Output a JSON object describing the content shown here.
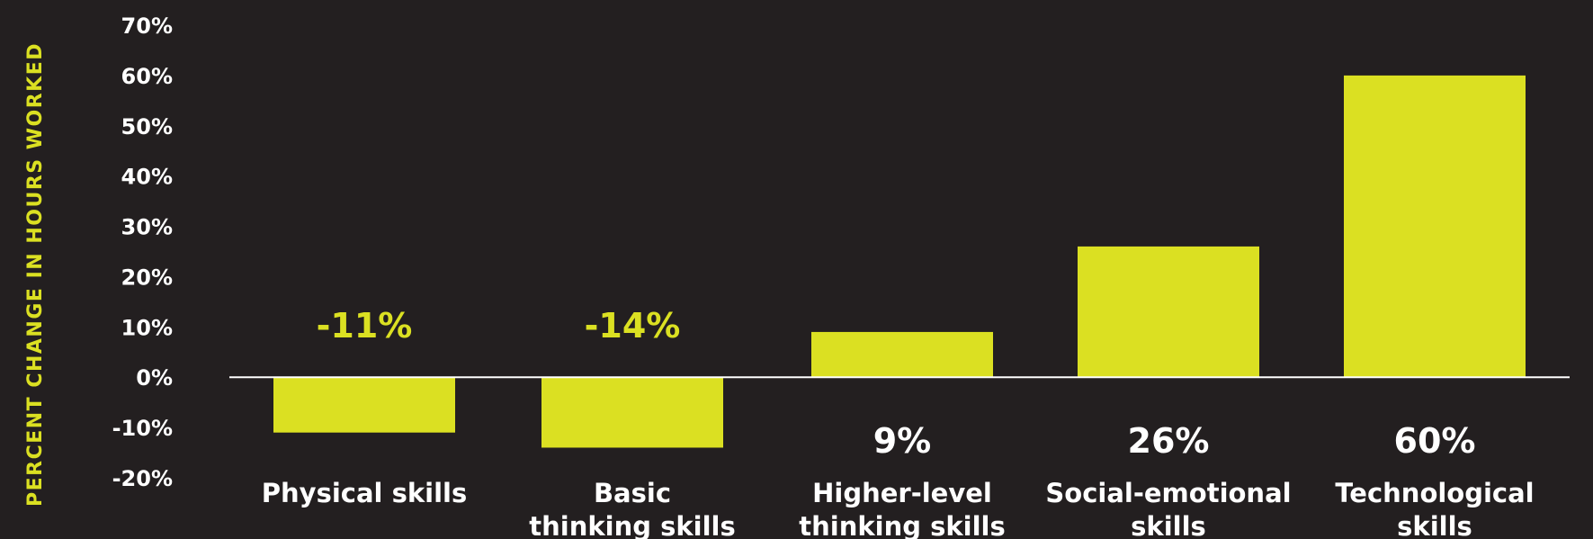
{
  "colors": {
    "background": "#231f20",
    "bar": "#dbe022",
    "text": "#ffffff",
    "axis_label": "#dbe022",
    "negative_label": "#dbe022",
    "positive_label": "#ffffff"
  },
  "chart_data": {
    "type": "bar",
    "ylabel": "PERCENT CHANGE IN HOURS WORKED",
    "ylim": [
      -20,
      70
    ],
    "yticks": [
      "70%",
      "60%",
      "50%",
      "40%",
      "30%",
      "20%",
      "10%",
      "0%",
      "-10%",
      "-20%"
    ],
    "categories": [
      [
        "Physical skills"
      ],
      [
        "Basic",
        "thinking skills"
      ],
      [
        "Higher-level",
        "thinking skills"
      ],
      [
        "Social-emotional",
        "skills"
      ],
      [
        "Technological",
        "skills"
      ]
    ],
    "values": [
      -11,
      -14,
      9,
      26,
      60
    ],
    "data_labels": [
      "-11%",
      "-14%",
      "9%",
      "26%",
      "60%"
    ],
    "grid": false,
    "legend": "none"
  }
}
